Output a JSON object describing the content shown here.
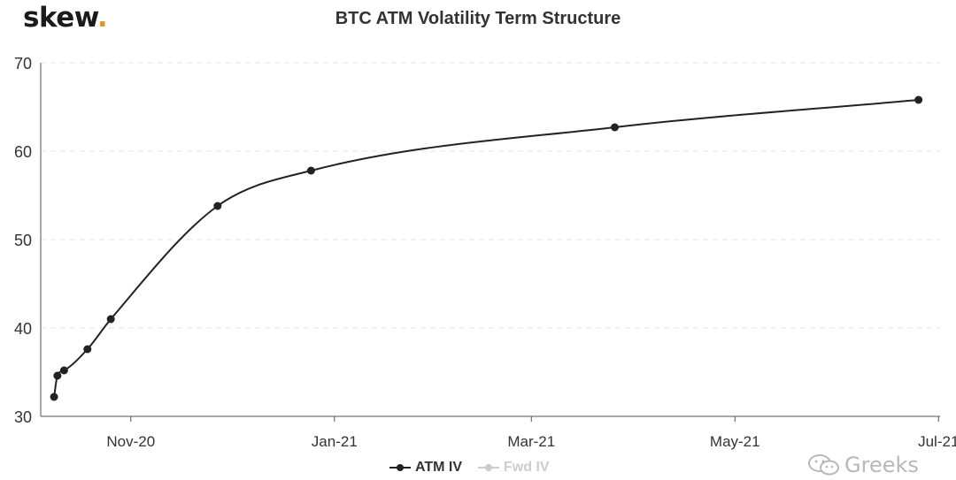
{
  "brand": {
    "logo_text": "skew",
    "logo_dot": "."
  },
  "watermark": {
    "text": "Greeks",
    "icon": "wechat-icon"
  },
  "colors": {
    "series": "#222222",
    "grid": "#e3e3e3",
    "axis": "#333333",
    "inactive": "#cccccc",
    "logo_dot": "#d89a24"
  },
  "chart_data": {
    "type": "line",
    "title": "BTC ATM Volatility Term Structure",
    "xlabel": "",
    "ylabel": "",
    "ylim": [
      30,
      70
    ],
    "yticks": [
      "30",
      "40",
      "50",
      "60",
      "70"
    ],
    "x_tick_labels": [
      {
        "label": "Nov-20",
        "date": "2020-11-01"
      },
      {
        "label": "Jan-21",
        "date": "2021-01-01"
      },
      {
        "label": "Mar-21",
        "date": "2021-03-01"
      },
      {
        "label": "May-21",
        "date": "2021-05-01"
      },
      {
        "label": "Jul-21",
        "date": "2021-07-01"
      }
    ],
    "grid": "horizontal dashed",
    "legend_position": "bottom-center",
    "series": [
      {
        "name": "ATM IV",
        "active": true,
        "points": [
          {
            "x": "2020-10-09",
            "y": 32.2
          },
          {
            "x": "2020-10-10",
            "y": 34.6
          },
          {
            "x": "2020-10-12",
            "y": 35.2
          },
          {
            "x": "2020-10-19",
            "y": 37.6
          },
          {
            "x": "2020-10-26",
            "y": 41.0
          },
          {
            "x": "2020-11-27",
            "y": 53.8
          },
          {
            "x": "2020-12-25",
            "y": 57.8
          },
          {
            "x": "2021-03-26",
            "y": 62.7
          },
          {
            "x": "2021-06-25",
            "y": 65.8
          }
        ]
      },
      {
        "name": "Fwd IV",
        "active": false,
        "points": []
      }
    ]
  }
}
